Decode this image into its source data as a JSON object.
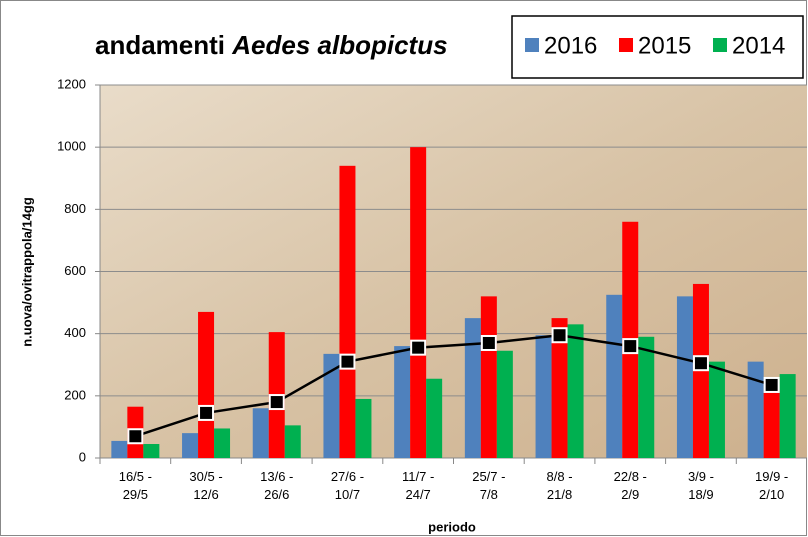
{
  "chart_data": {
    "type": "bar",
    "title_parts": [
      "andamenti",
      "Aedes albopictus"
    ],
    "y_label": "n.uova/ovitrappola/14gg",
    "x_label": "periodo",
    "categories": [
      [
        "16/5 -",
        "29/5"
      ],
      [
        "30/5 -",
        "12/6"
      ],
      [
        "13/6 -",
        "26/6"
      ],
      [
        "27/6 -",
        "10/7"
      ],
      [
        "11/7 -",
        "24/7"
      ],
      [
        "25/7 -",
        "7/8"
      ],
      [
        "8/8 -",
        "21/8"
      ],
      [
        "22/8 -",
        "2/9"
      ],
      [
        "3/9 -",
        "18/9"
      ],
      [
        "19/9 -",
        "2/10"
      ]
    ],
    "series": [
      {
        "name": "2016",
        "color": "#4f81bd",
        "values": [
          55,
          80,
          160,
          335,
          360,
          450,
          395,
          525,
          520,
          310
        ]
      },
      {
        "name": "2015",
        "color": "#ff0000",
        "values": [
          165,
          470,
          405,
          940,
          1000,
          520,
          450,
          760,
          560,
          210
        ]
      },
      {
        "name": "2014",
        "color": "#00b050",
        "values": [
          45,
          95,
          105,
          190,
          255,
          345,
          430,
          390,
          310,
          270
        ]
      }
    ],
    "line_series": {
      "type": "line",
      "color": "#000000",
      "values": [
        70,
        145,
        180,
        310,
        355,
        370,
        395,
        360,
        305,
        235
      ]
    },
    "ylim": [
      0,
      1200
    ],
    "yticks": [
      0,
      200,
      400,
      600,
      800,
      1000,
      1200
    ],
    "grid": true,
    "legend": "top-right"
  }
}
